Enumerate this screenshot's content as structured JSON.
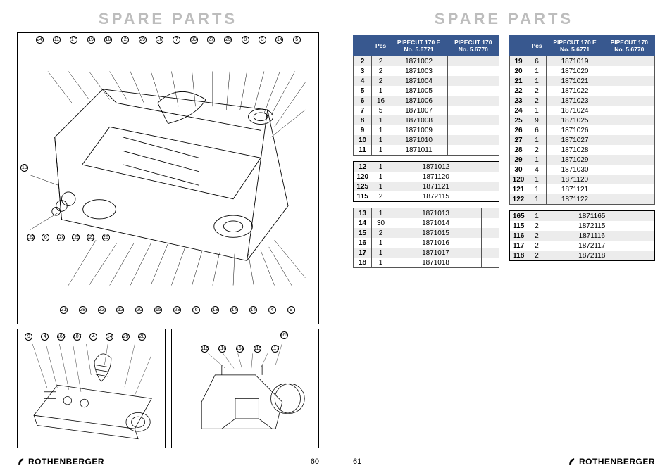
{
  "title": "Spare Parts",
  "brand": "ROTHENBERGER",
  "page_left": "60",
  "page_right": "61",
  "header": {
    "blank": "",
    "pcs": "Pcs",
    "model_a": "PIPECUT 170 E",
    "model_a_no": "No. 5.6771",
    "model_b": "PIPECUT 170",
    "model_b_no": "No. 5.6770"
  },
  "left_tables": [
    {
      "boxed": false,
      "rows": [
        {
          "n": "2",
          "p": "2",
          "a": "1871002",
          "b": "",
          "alt": true
        },
        {
          "n": "3",
          "p": "2",
          "a": "1871003",
          "b": "",
          "alt": false
        },
        {
          "n": "4",
          "p": "2",
          "a": "1871004",
          "b": "",
          "alt": true
        },
        {
          "n": "5",
          "p": "1",
          "a": "1871005",
          "b": "",
          "alt": false
        },
        {
          "n": "6",
          "p": "16",
          "a": "1871006",
          "b": "",
          "alt": true
        },
        {
          "n": "7",
          "p": "5",
          "a": "1871007",
          "b": "",
          "alt": false
        },
        {
          "n": "8",
          "p": "1",
          "a": "1871008",
          "b": "",
          "alt": true
        },
        {
          "n": "9",
          "p": "1",
          "a": "1871009",
          "b": "",
          "alt": false
        },
        {
          "n": "10",
          "p": "1",
          "a": "1871010",
          "b": "",
          "alt": true
        },
        {
          "n": "11",
          "p": "1",
          "a": "1871011",
          "b": "",
          "alt": false
        }
      ]
    },
    {
      "boxed": true,
      "rows": [
        {
          "n": "12",
          "p": "1",
          "a": "1871012",
          "b": "",
          "alt": true
        },
        {
          "n": "120",
          "p": "1",
          "a": "1871120",
          "b": "",
          "alt": false
        },
        {
          "n": "125",
          "p": "1",
          "a": "1871121",
          "b": "",
          "alt": true
        },
        {
          "n": "115",
          "p": "2",
          "a": "1872115",
          "b": "",
          "alt": false
        }
      ]
    },
    {
      "boxed": false,
      "rows": [
        {
          "n": "13",
          "p": "1",
          "a": "1871013",
          "b": "",
          "alt": true
        },
        {
          "n": "14",
          "p": "30",
          "a": "1871014",
          "b": "",
          "alt": false
        },
        {
          "n": "15",
          "p": "2",
          "a": "1871015",
          "b": "",
          "alt": true
        },
        {
          "n": "16",
          "p": "1",
          "a": "1871016",
          "b": "",
          "alt": false
        },
        {
          "n": "17",
          "p": "1",
          "a": "1871017",
          "b": "",
          "alt": true
        },
        {
          "n": "18",
          "p": "1",
          "a": "1871018",
          "b": "",
          "alt": false
        }
      ]
    }
  ],
  "right_tables": [
    {
      "boxed": false,
      "rows": [
        {
          "n": "19",
          "p": "6",
          "a": "1871019",
          "b": "",
          "alt": true
        },
        {
          "n": "20",
          "p": "1",
          "a": "1871020",
          "b": "",
          "alt": false
        },
        {
          "n": "21",
          "p": "1",
          "a": "1871021",
          "b": "",
          "alt": true
        },
        {
          "n": "22",
          "p": "2",
          "a": "1871022",
          "b": "",
          "alt": false
        },
        {
          "n": "23",
          "p": "2",
          "a": "1871023",
          "b": "",
          "alt": true
        },
        {
          "n": "24",
          "p": "1",
          "a": "1871024",
          "b": "",
          "alt": false
        },
        {
          "n": "25",
          "p": "9",
          "a": "1871025",
          "b": "",
          "alt": true
        },
        {
          "n": "26",
          "p": "6",
          "a": "1871026",
          "b": "",
          "alt": false
        },
        {
          "n": "27",
          "p": "1",
          "a": "1871027",
          "b": "",
          "alt": true
        },
        {
          "n": "28",
          "p": "2",
          "a": "1871028",
          "b": "",
          "alt": false
        },
        {
          "n": "29",
          "p": "1",
          "a": "1871029",
          "b": "",
          "alt": true
        },
        {
          "n": "30",
          "p": "4",
          "a": "1871030",
          "b": "",
          "alt": false
        },
        {
          "n": "120",
          "p": "1",
          "a": "1871120",
          "b": "",
          "alt": true
        },
        {
          "n": "121",
          "p": "1",
          "a": "1871121",
          "b": "",
          "alt": false
        },
        {
          "n": "122",
          "p": "1",
          "a": "1871122",
          "b": "",
          "alt": true
        }
      ]
    },
    {
      "boxed": true,
      "rows": [
        {
          "n": "165",
          "p": "1",
          "a": "1871165",
          "b": "",
          "alt": true
        },
        {
          "n": "115",
          "p": "2",
          "a": "1872115",
          "b": "",
          "alt": false
        },
        {
          "n": "116",
          "p": "2",
          "a": "1871116",
          "b": "",
          "alt": true
        },
        {
          "n": "117",
          "p": "2",
          "a": "1872117",
          "b": "",
          "alt": false
        },
        {
          "n": "118",
          "p": "2",
          "a": "1872118",
          "b": "",
          "alt": true
        }
      ]
    }
  ],
  "callouts_main_top": [
    "24",
    "11",
    "17",
    "19",
    "10",
    "2",
    "29",
    "16",
    "7",
    "30",
    "27",
    "25",
    "8",
    "3",
    "14",
    "5"
  ],
  "callouts_main_left": [
    "18",
    "122",
    "6",
    "120",
    "125",
    "121",
    "26"
  ],
  "callouts_main_bottom": [
    "21",
    "28",
    "22",
    "12",
    "20",
    "15",
    "23",
    "6",
    "13",
    "14",
    "14",
    "4",
    "9"
  ],
  "callouts_sub1": [
    "9",
    "4",
    "165",
    "107",
    "4",
    "14",
    "29",
    "28"
  ],
  "callouts_sub2_top": [
    "165"
  ],
  "callouts_sub2": [
    "115",
    "116",
    "151",
    "115",
    "117"
  ],
  "colors": {
    "title_gray": "#bdbdbd",
    "header_blue": "#38588f",
    "row_alt": "#ececec",
    "border": "#000000"
  }
}
